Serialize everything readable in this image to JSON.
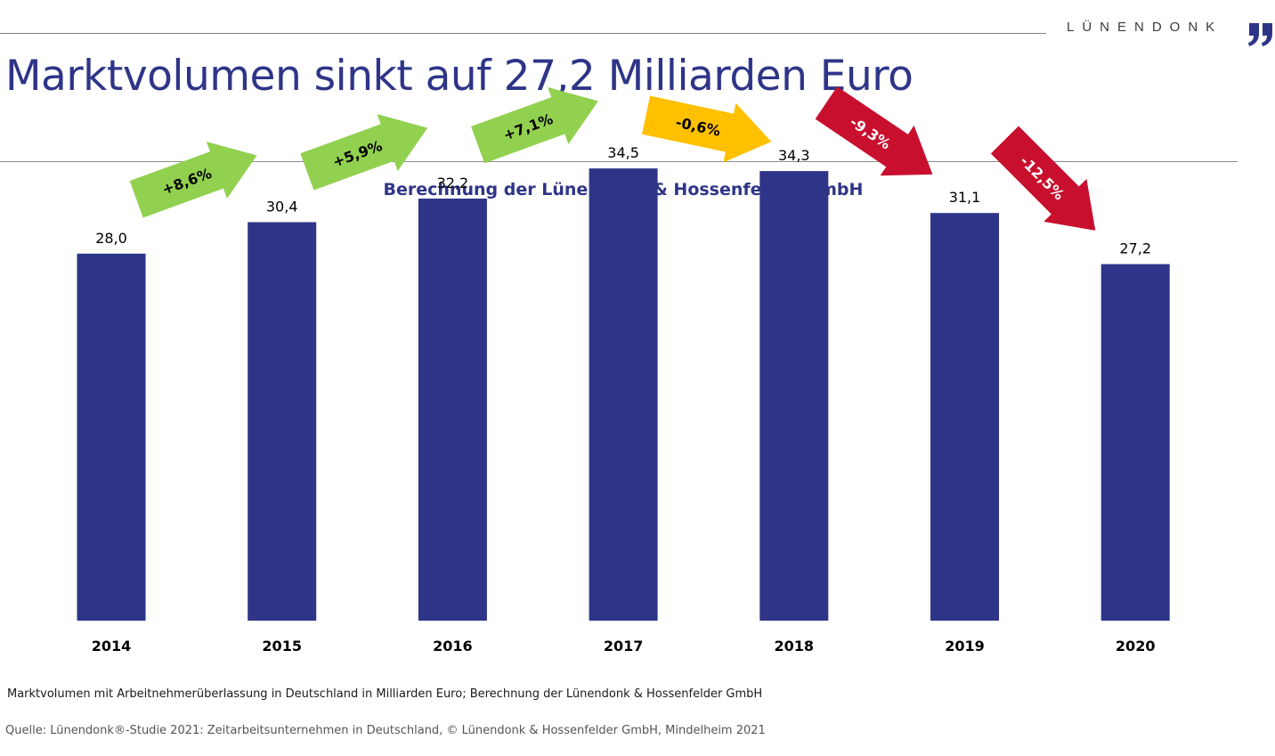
{
  "header": {
    "brand": "LÜNENDONK",
    "brand_mark_icon": "quote-mark-logo-icon",
    "title": "Marktvolumen sinkt auf 27,2 Milliarden Euro"
  },
  "colors": {
    "bar": "#2e3588",
    "title": "#2e3588",
    "growth": "#92d050",
    "flat": "#ffc000",
    "decline": "#c8102e"
  },
  "chart_data": {
    "type": "bar",
    "title": "Berechnung der Lünendonk & Hossenfelder GmbH",
    "xlabel": "",
    "ylabel": "",
    "categories": [
      "2014",
      "2015",
      "2016",
      "2017",
      "2018",
      "2019",
      "2020"
    ],
    "values": [
      28.0,
      30.4,
      32.2,
      34.5,
      34.3,
      31.1,
      27.2
    ],
    "value_labels": [
      "28,0",
      "30,4",
      "32,2",
      "34,5",
      "34,3",
      "31,1",
      "27,2"
    ],
    "ylim": [
      0,
      37.5
    ],
    "grid": false,
    "legend": "none",
    "annotations": [
      {
        "from": "2014",
        "to": "2015",
        "label": "+8,6%",
        "kind": "growth"
      },
      {
        "from": "2015",
        "to": "2016",
        "label": "+5,9%",
        "kind": "growth"
      },
      {
        "from": "2016",
        "to": "2017",
        "label": "+7,1%",
        "kind": "growth"
      },
      {
        "from": "2017",
        "to": "2018",
        "label": "-0,6%",
        "kind": "flat"
      },
      {
        "from": "2018",
        "to": "2019",
        "label": "-9,3%",
        "kind": "decline"
      },
      {
        "from": "2019",
        "to": "2020",
        "label": "-12,5%",
        "kind": "decline"
      }
    ]
  },
  "footer": {
    "caption": "Marktvolumen mit Arbeitnehmerüberlassung in Deutschland in Milliarden Euro; Berechnung der Lünendonk & Hossenfelder GmbH",
    "source": "Quelle: Lünendonk®-Studie 2021: Zeitarbeitsunternehmen in Deutschland, © Lünendonk & Hossenfelder GmbH, Mindelheim 2021"
  }
}
